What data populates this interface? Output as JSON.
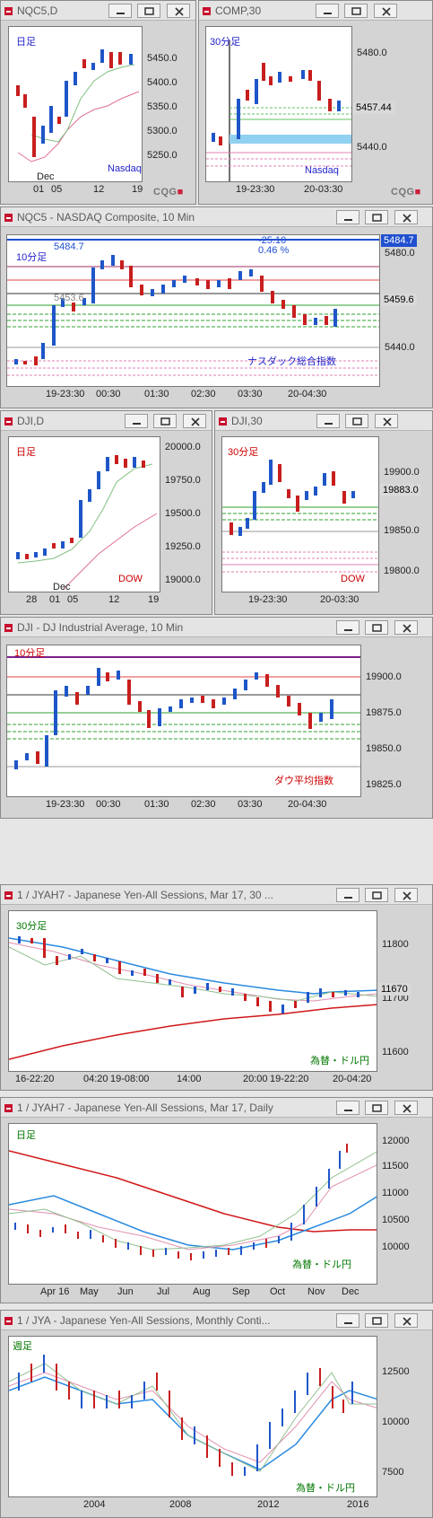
{
  "colors": {
    "blue_label": "#2222cc",
    "red_label": "#cc0000",
    "green_label": "#007700",
    "candle_up": "#1e56c8",
    "candle_down": "#c81e1e",
    "price_tag_bg": "#d9d9d9"
  },
  "icons": {
    "title": "chart-window-icon",
    "minimize": "minimize-icon",
    "maximize": "maximize-icon",
    "close": "close-icon"
  },
  "brand": "CQG",
  "windows": [
    {
      "title": "NQC5,D",
      "label": "日足",
      "label_color": "blue",
      "watermark": "Nasdaq",
      "watermark_color": "blue",
      "y_ticks": [
        "5450.0",
        "5400.0",
        "5350.0",
        "5300.0",
        "5250.0"
      ],
      "x_ticks": [
        "01",
        "05",
        "12",
        "19"
      ],
      "x_sub": "Dec"
    },
    {
      "title": "COMP,30",
      "label": "30分足",
      "label_color": "blue",
      "watermark": "Nasdaq",
      "watermark_color": "blue",
      "y_ticks": [
        "5480.0",
        "5440.0"
      ],
      "price_tag": "5457.44",
      "x_ticks": [
        "19-23:30",
        "20-03:30"
      ]
    },
    {
      "title": "NQC5 - NASDAQ Composite, 10 Min",
      "label": "10分足",
      "label_color": "blue",
      "watermark": "ナスダック総合指数",
      "watermark_color": "blue",
      "y_ticks": [
        "5480.0",
        "5440.0"
      ],
      "price_tags": [
        "5484.7",
        "5459.6"
      ],
      "level_label": "5484.7",
      "level_label2": "5453.6",
      "change": "-25.10",
      "change_pct": "0.46 %",
      "x_ticks": [
        "19-23:30",
        "00:30",
        "01:30",
        "02:30",
        "03:30",
        "20-04:30"
      ]
    },
    {
      "title": "DJI,D",
      "label": "日足",
      "label_color": "red",
      "watermark": "DOW",
      "watermark_color": "red",
      "y_ticks": [
        "20000.0",
        "19750.0",
        "19500.0",
        "19250.0",
        "19000.0"
      ],
      "x_ticks": [
        "28",
        "01",
        "05",
        "12",
        "19"
      ],
      "x_sub": "Dec"
    },
    {
      "title": "DJI,30",
      "label": "30分足",
      "label_color": "red",
      "watermark": "DOW",
      "watermark_color": "red",
      "y_ticks": [
        "19900.0",
        "19850.0",
        "19800.0"
      ],
      "price_tag": "19883.0",
      "x_ticks": [
        "19-23:30",
        "20-03:30"
      ]
    },
    {
      "title": "DJI - DJ Industrial Average, 10 Min",
      "label": "10分足",
      "label_color": "red",
      "watermark": "ダウ平均指数",
      "watermark_color": "red",
      "y_ticks": [
        "19900.0",
        "19875.0",
        "19850.0",
        "19825.0"
      ],
      "x_ticks": [
        "19-23:30",
        "00:30",
        "01:30",
        "02:30",
        "03:30",
        "20-04:30"
      ]
    },
    {
      "title": "1 / JYAH7 - Japanese Yen-All Sessions, Mar 17, 30 ...",
      "label": "30分足",
      "label_color": "green",
      "watermark": "為替・ドル円",
      "watermark_color": "green",
      "y_ticks": [
        "11800",
        "11700",
        "11600"
      ],
      "price_tag": "11670",
      "x_ticks": [
        "16-22:20",
        "04:20",
        "19-08:00",
        "14:00",
        "20:00",
        "19-22:20",
        "20-04:20"
      ]
    },
    {
      "title": "1 / JYAH7 - Japanese Yen-All Sessions, Mar 17, Daily",
      "label": "日足",
      "label_color": "green",
      "watermark": "為替・ドル円",
      "watermark_color": "green",
      "y_ticks": [
        "12000",
        "11500",
        "11000",
        "10500",
        "10000"
      ],
      "x_ticks": [
        "Apr 16",
        "May",
        "Jun",
        "Jul",
        "Aug",
        "Sep",
        "Oct",
        "Nov",
        "Dec"
      ]
    },
    {
      "title": "1 / JYA - Japanese Yen-All Sessions, Monthly Conti...",
      "label": "週足",
      "label_color": "green",
      "watermark": "為替・ドル円",
      "watermark_color": "green",
      "y_ticks": [
        "12500",
        "10000",
        "7500"
      ],
      "x_ticks": [
        "2004",
        "2008",
        "2012",
        "2016"
      ]
    }
  ]
}
